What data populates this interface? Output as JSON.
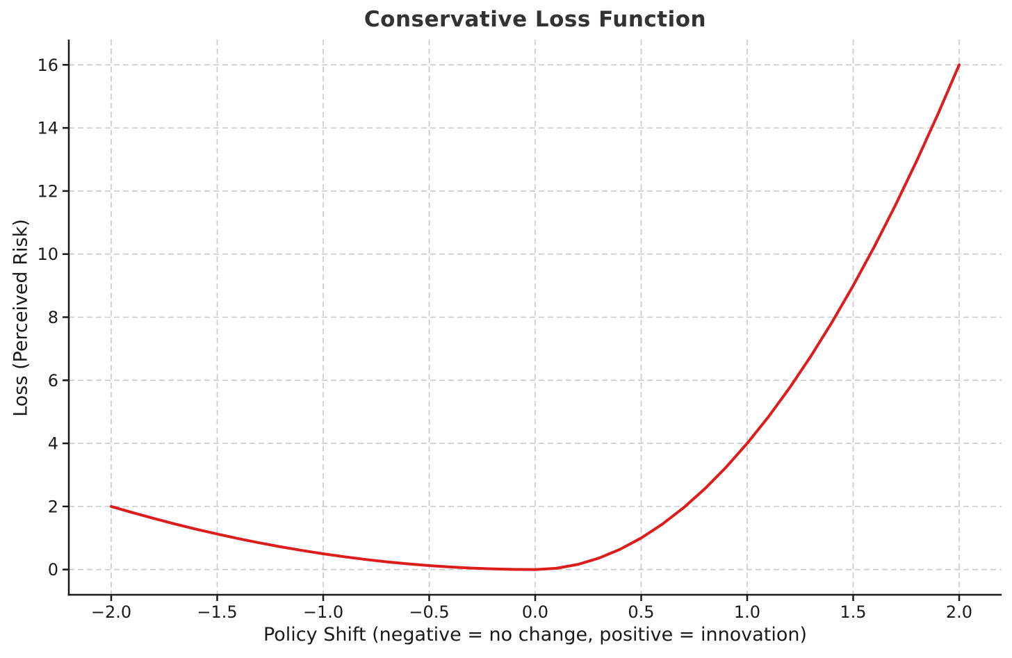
{
  "chart_data": {
    "type": "line",
    "title": "Conservative Loss Function",
    "xlabel": "Policy Shift (negative = no change, positive = innovation)",
    "ylabel": "Loss (Perceived Risk)",
    "xlim": [
      -2.2,
      2.2
    ],
    "ylim": [
      -0.8,
      16.8
    ],
    "xticks": [
      -2.0,
      -1.5,
      -1.0,
      -0.5,
      0.0,
      0.5,
      1.0,
      1.5,
      2.0
    ],
    "xtick_labels": [
      "−2.0",
      "−1.5",
      "−1.0",
      "−0.5",
      "0.0",
      "0.5",
      "1.0",
      "1.5",
      "2.0"
    ],
    "yticks": [
      0,
      2,
      4,
      6,
      8,
      10,
      12,
      14,
      16
    ],
    "ytick_labels": [
      "0",
      "2",
      "4",
      "6",
      "8",
      "10",
      "12",
      "14",
      "16"
    ],
    "grid": true,
    "grid_line_style": "dashed",
    "grid_color": "#c9c9c9",
    "axis_color": "#1a1a1a",
    "legend": null,
    "series": [
      {
        "name": "conservative-loss-curve",
        "color": "#dd1c1c",
        "line_width": 4,
        "x": [
          -2.0,
          -1.9,
          -1.8,
          -1.7,
          -1.6,
          -1.5,
          -1.4,
          -1.3,
          -1.2,
          -1.1,
          -1.0,
          -0.9,
          -0.8,
          -0.7,
          -0.6,
          -0.5,
          -0.4,
          -0.3,
          -0.2,
          -0.1,
          0.0,
          0.1,
          0.2,
          0.3,
          0.4,
          0.5,
          0.6,
          0.7,
          0.8,
          0.9,
          1.0,
          1.1,
          1.2,
          1.3,
          1.4,
          1.5,
          1.6,
          1.7,
          1.8,
          1.9,
          2.0
        ],
        "y": [
          2.0,
          1.805,
          1.62,
          1.445,
          1.28,
          1.125,
          0.98,
          0.845,
          0.72,
          0.605,
          0.5,
          0.405,
          0.32,
          0.245,
          0.18,
          0.125,
          0.08,
          0.045,
          0.02,
          0.005,
          0.0,
          0.04,
          0.16,
          0.36,
          0.64,
          1.0,
          1.44,
          1.96,
          2.56,
          3.24,
          4.0,
          4.84,
          5.76,
          6.76,
          7.84,
          9.0,
          10.24,
          11.56,
          12.96,
          14.44,
          16.0
        ]
      }
    ]
  }
}
